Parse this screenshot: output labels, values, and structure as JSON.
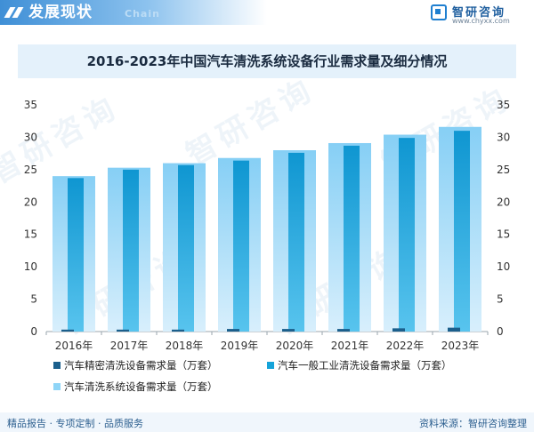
{
  "header": {
    "title": "发展现状",
    "subtitle": "Chain",
    "logo_name": "智研咨询",
    "logo_url": "www.chyxx.com"
  },
  "chart_title": "2016-2023年中国汽车清洗系统设备行业需求量及细分情况",
  "chart_data": {
    "type": "bar",
    "title": "2016-2023年中国汽车清洗系统设备行业需求量及细分情况",
    "categories": [
      "2016年",
      "2017年",
      "2018年",
      "2019年",
      "2020年",
      "2021年",
      "2022年",
      "2023年"
    ],
    "series": [
      {
        "name": "汽车精密清洗设备需求量（万套）",
        "values": [
          0.3,
          0.3,
          0.3,
          0.4,
          0.4,
          0.4,
          0.5,
          0.6
        ],
        "color": "#1b5f8c",
        "axis": "left"
      },
      {
        "name": "汽车一般工业清洗设备需求量（万套）",
        "values": [
          23.7,
          25.0,
          25.7,
          26.4,
          27.6,
          28.7,
          29.9,
          31.0
        ],
        "color": "#15a3d9",
        "axis": "left"
      },
      {
        "name": "汽车清洗系统设备需求量（万套）",
        "values": [
          24.0,
          25.3,
          26.0,
          26.8,
          28.0,
          29.1,
          30.4,
          31.6
        ],
        "color": "#8fd5f7",
        "axis": "right"
      }
    ],
    "ylim": [
      0,
      35
    ],
    "yticks": [
      0,
      5,
      10,
      15,
      20,
      25,
      30,
      35
    ],
    "y2lim": [
      0,
      35
    ],
    "y2ticks": [
      0,
      5,
      10,
      15,
      20,
      25,
      30,
      35
    ],
    "xlabel": "",
    "ylabel": "",
    "grid": false,
    "legend_position": "bottom"
  },
  "legend": {
    "items": [
      "汽车精密清洗设备需求量（万套）",
      "汽车一般工业清洗设备需求量（万套）",
      "汽车清洗系统设备需求量（万套）"
    ]
  },
  "footer": {
    "left": "精品报告 · 专项定制 · 品质服务",
    "right": "资料来源：智研咨询整理"
  },
  "watermark": "智研咨询"
}
